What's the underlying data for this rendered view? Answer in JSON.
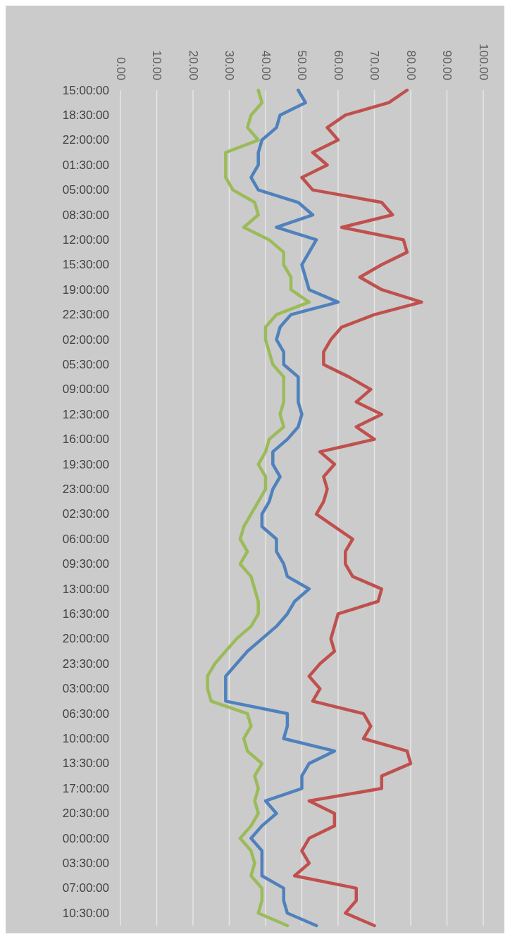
{
  "chart_data": {
    "type": "line",
    "orientation": "horizontal",
    "categories": [
      "15:00:00",
      null,
      "18:30:00",
      null,
      "22:00:00",
      null,
      "01:30:00",
      null,
      "05:00:00",
      null,
      "08:30:00",
      null,
      "12:00:00",
      null,
      "15:30:00",
      null,
      "19:00:00",
      null,
      "22:30:00",
      null,
      "02:00:00",
      null,
      "05:30:00",
      null,
      "09:00:00",
      null,
      "12:30:00",
      null,
      "16:00:00",
      null,
      "19:30:00",
      null,
      "23:00:00",
      null,
      "02:30:00",
      null,
      "06:00:00",
      null,
      "09:30:00",
      null,
      "13:00:00",
      null,
      "16:30:00",
      null,
      "20:00:00",
      null,
      "23:30:00",
      null,
      "03:00:00",
      null,
      "06:30:00",
      null,
      "10:00:00",
      null,
      "13:30:00",
      null,
      "17:00:00",
      null,
      "20:30:00",
      null,
      "00:00:00",
      null,
      "03:30:00",
      null,
      "07:00:00",
      null,
      "10:30:00",
      null
    ],
    "series": [
      {
        "color": "#4f81bd",
        "values": [
          49,
          51,
          44,
          43,
          39,
          38,
          38,
          36,
          38,
          49,
          53,
          43,
          54,
          52,
          50,
          51,
          52,
          60,
          47,
          44,
          43,
          45,
          45,
          49,
          49,
          49,
          50,
          49,
          46,
          42,
          42,
          44,
          42,
          41,
          39,
          39,
          43,
          43,
          45,
          46,
          52,
          48,
          46,
          43,
          39,
          35,
          32,
          29,
          29,
          29,
          46,
          46,
          45,
          59,
          52,
          50,
          50,
          40,
          43,
          39,
          36,
          39,
          39,
          39,
          45,
          45,
          46,
          54
        ]
      },
      {
        "color": "#c0504d",
        "values": [
          79,
          74,
          62,
          57,
          60,
          53,
          57,
          50,
          53,
          72,
          75,
          61,
          78,
          79,
          72,
          66,
          72,
          83,
          70,
          61,
          58,
          56,
          56,
          63,
          69,
          65,
          72,
          65,
          70,
          55,
          59,
          56,
          57,
          56,
          54,
          59,
          64,
          62,
          62,
          64,
          72,
          71,
          60,
          59,
          58,
          59,
          55,
          52,
          55,
          53,
          67,
          69,
          67,
          79,
          80,
          72,
          72,
          52,
          59,
          59,
          52,
          50,
          52,
          48,
          65,
          65,
          62,
          70
        ]
      },
      {
        "color": "#9bbb59",
        "values": [
          38,
          39,
          36,
          35,
          38,
          29,
          29,
          29,
          31,
          37,
          38,
          34,
          41,
          45,
          45,
          47,
          47,
          52,
          43,
          40,
          40,
          41,
          42,
          45,
          45,
          45,
          44,
          45,
          41,
          40,
          38,
          40,
          40,
          38,
          36,
          34,
          33,
          35,
          33,
          36,
          37,
          38,
          38,
          36,
          32,
          29,
          26,
          24,
          24,
          25,
          35,
          36,
          34,
          35,
          39,
          37,
          38,
          37,
          38,
          36,
          33,
          36,
          37,
          36,
          39,
          39,
          38,
          46
        ]
      }
    ],
    "xlim": [
      0,
      100
    ],
    "xticks": [
      {
        "value": 0,
        "label": "0.00"
      },
      {
        "value": 10,
        "label": "10.00"
      },
      {
        "value": 20,
        "label": "20.00"
      },
      {
        "value": 30,
        "label": "30.00"
      },
      {
        "value": 40,
        "label": "40.00"
      },
      {
        "value": 50,
        "label": "50.00"
      },
      {
        "value": 60,
        "label": "60.00"
      },
      {
        "value": 70,
        "label": "70.00"
      },
      {
        "value": 80,
        "label": "80.00"
      },
      {
        "value": 90,
        "label": "90.00"
      },
      {
        "value": 100,
        "label": "100.00"
      }
    ],
    "grid": "x"
  }
}
